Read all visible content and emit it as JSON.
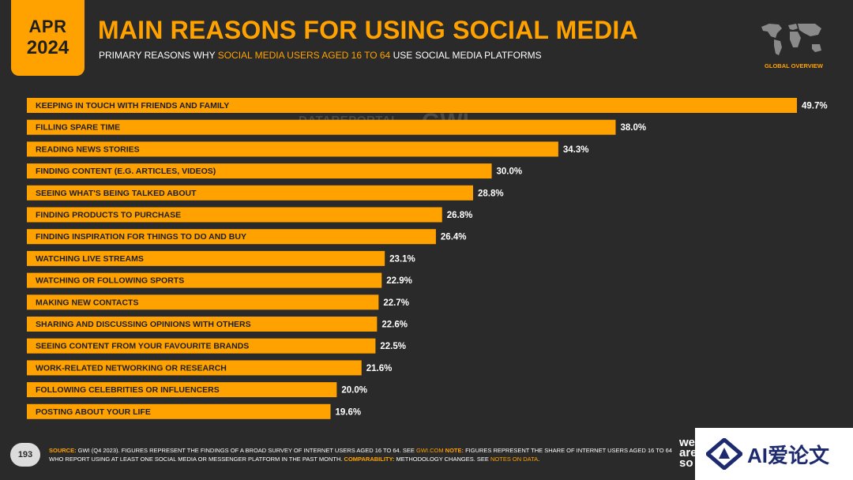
{
  "badge": {
    "month": "APR",
    "year": "2024"
  },
  "header": {
    "title": "MAIN REASONS FOR USING SOCIAL MEDIA",
    "subtitle_pre": "PRIMARY REASONS WHY ",
    "subtitle_highlight": "SOCIAL MEDIA USERS AGED 16 TO 64",
    "subtitle_post": " USE SOCIAL MEDIA PLATFORMS"
  },
  "map": {
    "label": "GLOBAL OVERVIEW",
    "icon": "world-map-icon"
  },
  "watermarks": {
    "datareportal": "DATAREPORTAL",
    "gwi": "GWI."
  },
  "colors": {
    "accent": "#ffa200",
    "background": "#2a2a2a",
    "bar_text": "#1f1f1f"
  },
  "chart_data": {
    "type": "bar",
    "orientation": "horizontal",
    "categories": [
      "KEEPING IN TOUCH WITH FRIENDS AND FAMILY",
      "FILLING SPARE TIME",
      "READING NEWS STORIES",
      "FINDING CONTENT (E.G. ARTICLES, VIDEOS)",
      "SEEING WHAT'S BEING TALKED ABOUT",
      "FINDING PRODUCTS TO PURCHASE",
      "FINDING INSPIRATION FOR THINGS TO DO AND BUY",
      "WATCHING LIVE STREAMS",
      "WATCHING OR FOLLOWING SPORTS",
      "MAKING NEW CONTACTS",
      "SHARING AND DISCUSSING OPINIONS WITH OTHERS",
      "SEEING CONTENT FROM YOUR FAVOURITE BRANDS",
      "WORK-RELATED NETWORKING OR RESEARCH",
      "FOLLOWING CELEBRITIES OR INFLUENCERS",
      "POSTING ABOUT YOUR LIFE"
    ],
    "values": [
      49.7,
      38.0,
      34.3,
      30.0,
      28.8,
      26.8,
      26.4,
      23.1,
      22.9,
      22.7,
      22.6,
      22.5,
      21.6,
      20.0,
      19.6
    ],
    "value_labels": [
      "49.7%",
      "38.0%",
      "34.3%",
      "30.0%",
      "28.8%",
      "26.8%",
      "26.4%",
      "23.1%",
      "22.9%",
      "22.7%",
      "22.6%",
      "22.5%",
      "21.6%",
      "20.0%",
      "19.6%"
    ],
    "unit": "%",
    "xlim": [
      0,
      49.7
    ],
    "grid": false
  },
  "footer": {
    "page_number": "193",
    "source_label": "SOURCE:",
    "source_text": " GWI (Q4 2023). FIGURES REPRESENT THE FINDINGS OF A BROAD SURVEY OF INTERNET USERS AGED 16 TO 64. SEE ",
    "source_link": "GWI.COM",
    "note_label": " NOTE:",
    "note_text": " FIGURES REPRESENT THE SHARE OF INTERNET USERS AGED 16 TO 64 WHO REPORT USING AT LEAST ONE SOCIAL MEDIA OR MESSENGER PLATFORM IN THE PAST MONTH. ",
    "comparability_label": "COMPARABILITY:",
    "comparability_text": " METHODOLOGY CHANGES. SEE ",
    "notes_link": "NOTES ON DATA",
    "period": ".",
    "brand_fragment": "we are so"
  },
  "ai_banner": {
    "text": "AI爱论文",
    "icon": "ai-logo-icon"
  }
}
